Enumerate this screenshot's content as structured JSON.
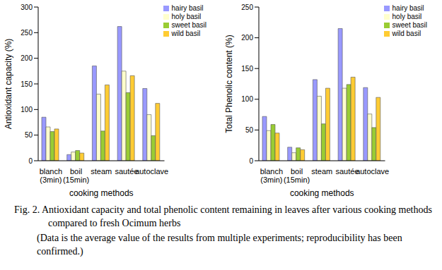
{
  "chart_data": [
    {
      "type": "bar",
      "ylabel": "Antioxidant capacity (%)",
      "xlabel": "cooking methods",
      "categories": [
        "blanch\n(3min)",
        "boil\n(15min)",
        "steam",
        "sautée",
        "autoclave"
      ],
      "series": [
        {
          "name": "hairy basil",
          "color": "#9999ff",
          "values": [
            85,
            12,
            185,
            262,
            141
          ]
        },
        {
          "name": "holy basil",
          "color": "#ffffcc",
          "values": [
            66,
            17,
            130,
            175,
            90
          ]
        },
        {
          "name": "sweet basil",
          "color": "#99cc33",
          "values": [
            57,
            20,
            58,
            133,
            49
          ]
        },
        {
          "name": "wild basil",
          "color": "#ffcc33",
          "values": [
            62,
            15,
            148,
            166,
            112
          ]
        }
      ],
      "ylim": [
        0,
        300
      ],
      "yticks": [
        0,
        50,
        100,
        150,
        200,
        250,
        300
      ],
      "grid": false,
      "legend": "upper right"
    },
    {
      "type": "bar",
      "ylabel": "Total Phenolic content (%)",
      "xlabel": "cooking methods",
      "categories": [
        "blanch\n(3min)",
        "boil\n(15min)",
        "steam",
        "sautée",
        "autoclave"
      ],
      "series": [
        {
          "name": "hairy basil",
          "color": "#9999ff",
          "values": [
            72,
            22,
            132,
            215,
            119
          ]
        },
        {
          "name": "holy basil",
          "color": "#ffffcc",
          "values": [
            49,
            13,
            105,
            118,
            76
          ]
        },
        {
          "name": "sweet basil",
          "color": "#99cc33",
          "values": [
            59,
            21,
            60,
            124,
            54
          ]
        },
        {
          "name": "wild basil",
          "color": "#ffcc33",
          "values": [
            45,
            18,
            118,
            136,
            103
          ]
        }
      ],
      "ylim": [
        0,
        250
      ],
      "yticks": [
        0,
        50,
        100,
        150,
        200,
        250
      ],
      "grid": false,
      "legend": "upper right"
    }
  ],
  "caption": "Fig. 2. Antioxidant capacity and total phenolic content remaining in leaves after various cooking methods compared to fresh Ocimum herbs",
  "note": "(Data is the average value of the results from multiple experiments; reproducibility has been confirmed.)"
}
